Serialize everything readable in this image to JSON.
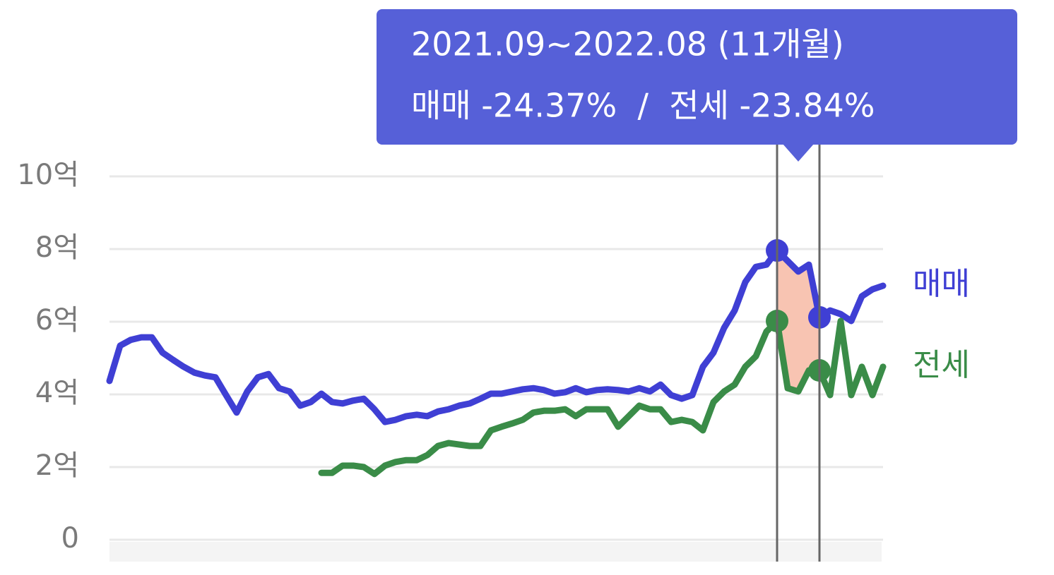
{
  "chart_data": {
    "type": "line",
    "annotations": [
      "2021.09~2022.08 (11개월)",
      "매매 -24.37%  /  전세 -23.84%"
    ],
    "ylim": [
      0,
      10
    ],
    "yticks": [
      0,
      {
        "value": 2,
        "label": "2억"
      },
      {
        "value": 4,
        "label": "4억"
      },
      {
        "value": 6,
        "label": "6억"
      },
      {
        "value": 8,
        "label": "8억"
      },
      {
        "value": 10,
        "label": "10억"
      }
    ],
    "grid": true,
    "highlight_range": [
      63,
      67
    ],
    "highlight_color": "#f8c4b2",
    "series": [
      {
        "name": "매매",
        "color": "#3f3fd4",
        "values": [
          4.37,
          5.34,
          5.5,
          5.57,
          5.57,
          5.15,
          4.95,
          4.76,
          4.6,
          4.52,
          4.47,
          3.98,
          3.5,
          4.08,
          4.47,
          4.56,
          4.17,
          4.08,
          3.69,
          3.79,
          4.02,
          3.79,
          3.75,
          3.83,
          3.88,
          3.59,
          3.24,
          3.3,
          3.4,
          3.44,
          3.4,
          3.53,
          3.59,
          3.69,
          3.75,
          3.88,
          4.02,
          4.02,
          4.08,
          4.14,
          4.17,
          4.12,
          4.02,
          4.06,
          4.17,
          4.06,
          4.12,
          4.14,
          4.12,
          4.08,
          4.17,
          4.08,
          4.27,
          3.98,
          3.88,
          3.98,
          4.76,
          5.15,
          5.83,
          6.31,
          7.09,
          7.51,
          7.57,
          7.96,
          7.67,
          7.38,
          7.57,
          6.12,
          6.31,
          6.21,
          6.02,
          6.7,
          6.89,
          6.99
        ]
      },
      {
        "name": "전세",
        "color": "#3a8c48",
        "values": [
          null,
          null,
          null,
          null,
          null,
          null,
          null,
          null,
          null,
          null,
          null,
          null,
          null,
          null,
          null,
          null,
          null,
          null,
          null,
          null,
          1.84,
          1.84,
          2.04,
          2.04,
          2.0,
          1.81,
          2.04,
          2.14,
          2.19,
          2.19,
          2.33,
          2.58,
          2.66,
          2.62,
          2.58,
          2.58,
          3.01,
          3.11,
          3.2,
          3.3,
          3.5,
          3.55,
          3.55,
          3.59,
          3.4,
          3.59,
          3.59,
          3.59,
          3.11,
          3.4,
          3.69,
          3.59,
          3.59,
          3.24,
          3.3,
          3.24,
          3.01,
          3.79,
          4.08,
          4.27,
          4.76,
          5.05,
          5.73,
          6.02,
          4.17,
          4.08,
          4.66,
          4.66,
          3.98,
          6.02,
          3.98,
          4.76,
          3.98,
          4.76
        ]
      }
    ]
  }
}
